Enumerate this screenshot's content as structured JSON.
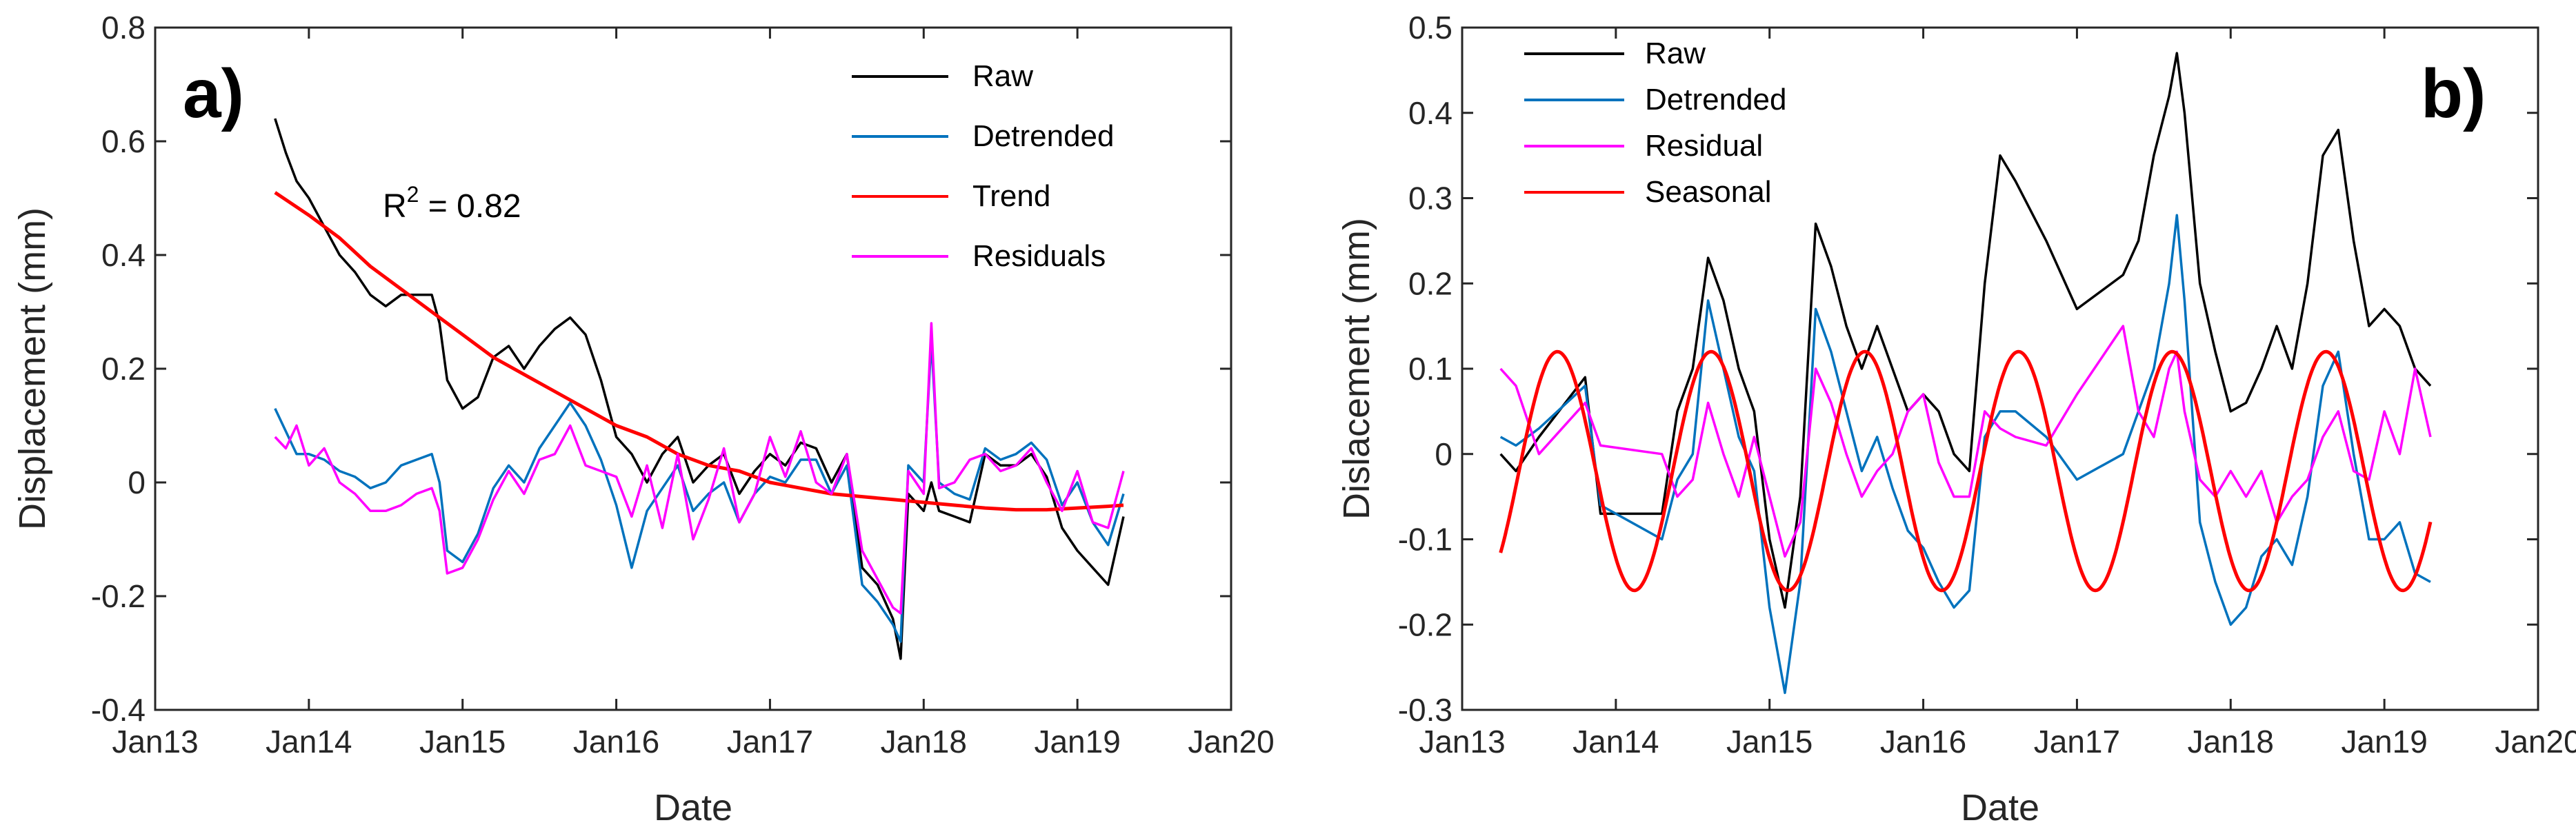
{
  "chart_data": [
    {
      "type": "line",
      "panel_label": "a)",
      "xlabel": "Date",
      "ylabel": "Displacement (mm)",
      "x_ticks": [
        "Jan13",
        "Jan14",
        "Jan15",
        "Jan16",
        "Jan17",
        "Jan18",
        "Jan19",
        "Jan20"
      ],
      "x_tick_values": [
        2013,
        2014,
        2015,
        2016,
        2017,
        2018,
        2019,
        2020
      ],
      "xlim": [
        2013,
        2020
      ],
      "ylim": [
        -0.4,
        0.8
      ],
      "y_ticks": [
        -0.4,
        -0.2,
        0,
        0.2,
        0.4,
        0.6,
        0.8
      ],
      "y_tick_labels": [
        "-0.4",
        "-0.2",
        "0",
        "0.2",
        "0.4",
        "0.6",
        "0.8"
      ],
      "annotation": {
        "base": "R",
        "sup": "2",
        "rest": " = 0.82"
      },
      "legend_position": "top-right",
      "series": [
        {
          "name": "Raw",
          "color": "#000000",
          "x": [
            2013.78,
            2013.85,
            2013.92,
            2014.0,
            2014.1,
            2014.2,
            2014.3,
            2014.4,
            2014.5,
            2014.6,
            2014.7,
            2014.8,
            2014.85,
            2014.9,
            2015.0,
            2015.1,
            2015.2,
            2015.3,
            2015.4,
            2015.5,
            2015.6,
            2015.7,
            2015.8,
            2015.9,
            2016.0,
            2016.1,
            2016.2,
            2016.3,
            2016.4,
            2016.5,
            2016.6,
            2016.7,
            2016.8,
            2016.9,
            2017.0,
            2017.1,
            2017.2,
            2017.3,
            2017.4,
            2017.5,
            2017.6,
            2017.7,
            2017.8,
            2017.85,
            2017.9,
            2018.0,
            2018.05,
            2018.1,
            2018.2,
            2018.3,
            2018.4,
            2018.5,
            2018.6,
            2018.7,
            2018.8,
            2018.9,
            2019.0,
            2019.1,
            2019.2,
            2019.3
          ],
          "y": [
            0.64,
            0.58,
            0.53,
            0.5,
            0.45,
            0.4,
            0.37,
            0.33,
            0.31,
            0.33,
            0.33,
            0.33,
            0.28,
            0.18,
            0.13,
            0.15,
            0.22,
            0.24,
            0.2,
            0.24,
            0.27,
            0.29,
            0.26,
            0.18,
            0.08,
            0.05,
            0.0,
            0.05,
            0.08,
            0.0,
            0.03,
            0.05,
            -0.02,
            0.02,
            0.05,
            0.03,
            0.07,
            0.06,
            0.0,
            0.05,
            -0.15,
            -0.18,
            -0.24,
            -0.31,
            -0.02,
            -0.05,
            0.0,
            -0.05,
            -0.06,
            -0.07,
            0.05,
            0.03,
            0.03,
            0.05,
            0.01,
            -0.08,
            -0.12,
            -0.15,
            -0.18,
            -0.06
          ]
        },
        {
          "name": "Detrended",
          "color": "#0072bd",
          "x": [
            2013.78,
            2013.85,
            2013.92,
            2014.0,
            2014.1,
            2014.2,
            2014.3,
            2014.4,
            2014.5,
            2014.6,
            2014.7,
            2014.8,
            2014.85,
            2014.9,
            2015.0,
            2015.1,
            2015.2,
            2015.3,
            2015.4,
            2015.5,
            2015.6,
            2015.7,
            2015.8,
            2015.9,
            2016.0,
            2016.1,
            2016.2,
            2016.3,
            2016.4,
            2016.5,
            2016.6,
            2016.7,
            2016.8,
            2016.9,
            2017.0,
            2017.1,
            2017.2,
            2017.3,
            2017.4,
            2017.5,
            2017.6,
            2017.7,
            2017.8,
            2017.85,
            2017.9,
            2018.0,
            2018.05,
            2018.1,
            2018.2,
            2018.3,
            2018.4,
            2018.5,
            2018.6,
            2018.7,
            2018.8,
            2018.9,
            2019.0,
            2019.1,
            2019.2,
            2019.3
          ],
          "y": [
            0.13,
            0.09,
            0.05,
            0.05,
            0.04,
            0.02,
            0.01,
            -0.01,
            0.0,
            0.03,
            0.04,
            0.05,
            0.0,
            -0.12,
            -0.14,
            -0.09,
            -0.01,
            0.03,
            0.0,
            0.06,
            0.1,
            0.14,
            0.1,
            0.04,
            -0.04,
            -0.15,
            -0.05,
            -0.01,
            0.03,
            -0.05,
            -0.02,
            0.0,
            -0.07,
            -0.02,
            0.01,
            0.0,
            0.04,
            0.04,
            -0.02,
            0.03,
            -0.18,
            -0.21,
            -0.25,
            -0.28,
            0.03,
            0.0,
            0.25,
            0.0,
            -0.02,
            -0.03,
            0.06,
            0.04,
            0.05,
            0.07,
            0.04,
            -0.04,
            0.0,
            -0.07,
            -0.11,
            -0.02
          ]
        },
        {
          "name": "Trend",
          "color": "#ff0000",
          "x": [
            2013.78,
            2014.0,
            2014.2,
            2014.4,
            2014.6,
            2014.8,
            2015.0,
            2015.2,
            2015.4,
            2015.6,
            2015.8,
            2016.0,
            2016.2,
            2016.4,
            2016.6,
            2016.8,
            2017.0,
            2017.2,
            2017.4,
            2017.6,
            2017.8,
            2018.0,
            2018.2,
            2018.4,
            2018.6,
            2018.8,
            2019.0,
            2019.2,
            2019.3
          ],
          "y": [
            0.51,
            0.47,
            0.43,
            0.38,
            0.34,
            0.3,
            0.26,
            0.22,
            0.19,
            0.16,
            0.13,
            0.1,
            0.08,
            0.05,
            0.03,
            0.02,
            0.0,
            -0.01,
            -0.02,
            -0.025,
            -0.03,
            -0.035,
            -0.04,
            -0.045,
            -0.048,
            -0.048,
            -0.045,
            -0.042,
            -0.04
          ]
        },
        {
          "name": "Residuals",
          "color": "#ff00ff",
          "x": [
            2013.78,
            2013.85,
            2013.92,
            2014.0,
            2014.1,
            2014.2,
            2014.3,
            2014.4,
            2014.5,
            2014.6,
            2014.7,
            2014.8,
            2014.85,
            2014.9,
            2015.0,
            2015.1,
            2015.2,
            2015.3,
            2015.4,
            2015.5,
            2015.6,
            2015.7,
            2015.8,
            2015.9,
            2016.0,
            2016.1,
            2016.2,
            2016.3,
            2016.4,
            2016.5,
            2016.6,
            2016.7,
            2016.8,
            2016.9,
            2017.0,
            2017.1,
            2017.2,
            2017.3,
            2017.4,
            2017.5,
            2017.6,
            2017.7,
            2017.8,
            2017.85,
            2017.9,
            2018.0,
            2018.05,
            2018.1,
            2018.2,
            2018.3,
            2018.4,
            2018.5,
            2018.6,
            2018.7,
            2018.8,
            2018.9,
            2019.0,
            2019.1,
            2019.2,
            2019.3
          ],
          "y": [
            0.08,
            0.06,
            0.1,
            0.03,
            0.06,
            0.0,
            -0.02,
            -0.05,
            -0.05,
            -0.04,
            -0.02,
            -0.01,
            -0.05,
            -0.16,
            -0.15,
            -0.1,
            -0.03,
            0.02,
            -0.02,
            0.04,
            0.05,
            0.1,
            0.03,
            0.02,
            0.01,
            -0.06,
            0.03,
            -0.08,
            0.05,
            -0.1,
            -0.03,
            0.06,
            -0.07,
            -0.02,
            0.08,
            0.01,
            0.09,
            0.0,
            -0.02,
            0.05,
            -0.12,
            -0.17,
            -0.22,
            -0.23,
            0.02,
            -0.02,
            0.28,
            -0.01,
            0.0,
            0.04,
            0.05,
            0.02,
            0.03,
            0.06,
            0.0,
            -0.05,
            0.02,
            -0.07,
            -0.08,
            0.02
          ]
        }
      ]
    },
    {
      "type": "line",
      "panel_label": "b)",
      "xlabel": "Date",
      "ylabel": "Dislacement (mm)",
      "x_ticks": [
        "Jan13",
        "Jan14",
        "Jan15",
        "Jan16",
        "Jan17",
        "Jan18",
        "Jan19",
        "Jan20"
      ],
      "x_tick_values": [
        2013,
        2014,
        2015,
        2016,
        2017,
        2018,
        2019,
        2020
      ],
      "xlim": [
        2013,
        2020
      ],
      "ylim": [
        -0.3,
        0.5
      ],
      "y_ticks": [
        -0.3,
        -0.2,
        -0.1,
        0,
        0.1,
        0.2,
        0.3,
        0.4,
        0.5
      ],
      "y_tick_labels": [
        "-0.3",
        "-0.2",
        "-0.1",
        "0",
        "0.1",
        "0.2",
        "0.3",
        "0.4",
        "0.5"
      ],
      "legend_position": "top-left",
      "series": [
        {
          "name": "Raw",
          "color": "#000000",
          "x": [
            2013.25,
            2013.35,
            2013.5,
            2013.8,
            2013.9,
            2014.3,
            2014.4,
            2014.5,
            2014.6,
            2014.7,
            2014.8,
            2014.9,
            2015.0,
            2015.1,
            2015.2,
            2015.3,
            2015.4,
            2015.5,
            2015.6,
            2015.7,
            2015.8,
            2015.9,
            2016.0,
            2016.1,
            2016.2,
            2016.3,
            2016.4,
            2016.5,
            2016.6,
            2016.8,
            2017.0,
            2017.3,
            2017.4,
            2017.5,
            2017.6,
            2017.65,
            2017.7,
            2017.8,
            2017.9,
            2018.0,
            2018.1,
            2018.2,
            2018.3,
            2018.4,
            2018.5,
            2018.6,
            2018.7,
            2018.8,
            2018.9,
            2019.0,
            2019.1,
            2019.2,
            2019.3
          ],
          "y": [
            0.0,
            -0.02,
            0.02,
            0.09,
            -0.07,
            -0.07,
            0.05,
            0.1,
            0.23,
            0.18,
            0.1,
            0.05,
            -0.1,
            -0.18,
            -0.05,
            0.27,
            0.22,
            0.15,
            0.1,
            0.15,
            0.1,
            0.05,
            0.07,
            0.05,
            0.0,
            -0.02,
            0.2,
            0.35,
            0.32,
            0.25,
            0.17,
            0.21,
            0.25,
            0.35,
            0.42,
            0.47,
            0.4,
            0.2,
            0.12,
            0.05,
            0.06,
            0.1,
            0.15,
            0.1,
            0.2,
            0.35,
            0.38,
            0.25,
            0.15,
            0.17,
            0.15,
            0.1,
            0.08
          ]
        },
        {
          "name": "Detrended",
          "color": "#0072bd",
          "x": [
            2013.25,
            2013.35,
            2013.5,
            2013.8,
            2013.9,
            2014.3,
            2014.4,
            2014.5,
            2014.6,
            2014.7,
            2014.8,
            2014.9,
            2015.0,
            2015.1,
            2015.2,
            2015.3,
            2015.4,
            2015.5,
            2015.6,
            2015.7,
            2015.8,
            2015.9,
            2016.0,
            2016.1,
            2016.2,
            2016.3,
            2016.4,
            2016.5,
            2016.6,
            2016.8,
            2017.0,
            2017.3,
            2017.4,
            2017.5,
            2017.6,
            2017.65,
            2017.7,
            2017.8,
            2017.9,
            2018.0,
            2018.1,
            2018.2,
            2018.3,
            2018.4,
            2018.5,
            2018.6,
            2018.7,
            2018.8,
            2018.9,
            2019.0,
            2019.1,
            2019.2,
            2019.3
          ],
          "y": [
            0.02,
            0.01,
            0.03,
            0.08,
            -0.06,
            -0.1,
            -0.03,
            0.0,
            0.18,
            0.1,
            0.02,
            -0.02,
            -0.18,
            -0.28,
            -0.15,
            0.17,
            0.12,
            0.05,
            -0.02,
            0.02,
            -0.04,
            -0.09,
            -0.11,
            -0.15,
            -0.18,
            -0.16,
            0.02,
            0.05,
            0.05,
            0.02,
            -0.03,
            0.0,
            0.05,
            0.1,
            0.2,
            0.28,
            0.18,
            -0.08,
            -0.15,
            -0.2,
            -0.18,
            -0.12,
            -0.1,
            -0.13,
            -0.05,
            0.08,
            0.12,
            0.0,
            -0.1,
            -0.1,
            -0.08,
            -0.14,
            -0.15
          ]
        },
        {
          "name": "Residual",
          "color": "#ff00ff",
          "x": [
            2013.25,
            2013.35,
            2013.5,
            2013.8,
            2013.9,
            2014.3,
            2014.4,
            2014.5,
            2014.6,
            2014.7,
            2014.8,
            2014.9,
            2015.0,
            2015.1,
            2015.2,
            2015.3,
            2015.4,
            2015.5,
            2015.6,
            2015.7,
            2015.8,
            2015.9,
            2016.0,
            2016.1,
            2016.2,
            2016.3,
            2016.4,
            2016.5,
            2016.6,
            2016.8,
            2017.0,
            2017.3,
            2017.4,
            2017.5,
            2017.6,
            2017.65,
            2017.7,
            2017.8,
            2017.9,
            2018.0,
            2018.1,
            2018.2,
            2018.3,
            2018.4,
            2018.5,
            2018.6,
            2018.7,
            2018.8,
            2018.9,
            2019.0,
            2019.1,
            2019.2,
            2019.3
          ],
          "y": [
            0.1,
            0.08,
            0.0,
            0.06,
            0.01,
            0.0,
            -0.05,
            -0.03,
            0.06,
            0.0,
            -0.05,
            0.02,
            -0.05,
            -0.12,
            -0.08,
            0.1,
            0.06,
            0.0,
            -0.05,
            -0.02,
            0.0,
            0.05,
            0.07,
            -0.01,
            -0.05,
            -0.05,
            0.05,
            0.03,
            0.02,
            0.01,
            0.07,
            0.15,
            0.05,
            0.02,
            0.1,
            0.12,
            0.05,
            -0.03,
            -0.05,
            -0.02,
            -0.05,
            -0.02,
            -0.08,
            -0.05,
            -0.03,
            0.02,
            0.05,
            -0.02,
            -0.03,
            0.05,
            0.0,
            0.1,
            0.02
          ]
        },
        {
          "name": "Seasonal",
          "color": "#ff0000",
          "function": "sine",
          "mean": -0.02,
          "amplitude": 0.14,
          "period_years": 1.0,
          "peak_x": 2013.62,
          "x_range": [
            2013.25,
            2019.3
          ]
        }
      ]
    }
  ]
}
